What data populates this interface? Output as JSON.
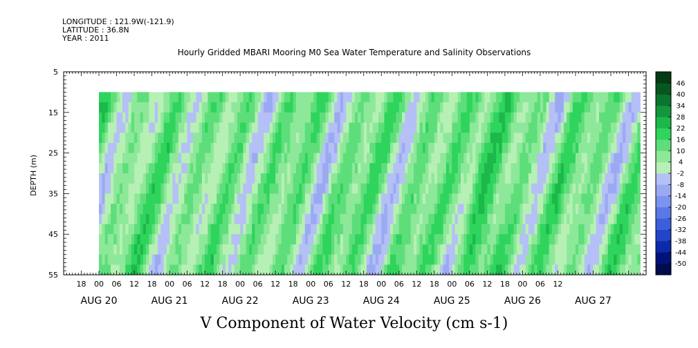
{
  "header": {
    "longitude": "LONGITUDE : 121.9W(-121.9)",
    "latitude": "LATITUDE : 36.8N",
    "year": "YEAR : 2011"
  },
  "chart_data": {
    "type": "heatmap",
    "title": "Hourly Gridded MBARI Mooring M0 Sea Water Temperature and Salinity Observations",
    "xlabel": "V Component of Water Velocity (cm s-1)",
    "ylabel": "DEPTH (m)",
    "ylim": [
      5,
      55
    ],
    "y_inverted": true,
    "y_ticks": [
      5,
      15,
      25,
      35,
      45,
      55
    ],
    "x_range_hours": [
      "2011-08-19T12:00",
      "2011-08-27T18:00"
    ],
    "data_x_range": [
      "2011-08-20T00:00",
      "2011-08-27T16:00"
    ],
    "data_depth_range": [
      10,
      55
    ],
    "x_hour_ticks": [
      "18",
      "00",
      "06",
      "12",
      "18",
      "00",
      "06",
      "12",
      "18",
      "00",
      "06",
      "12",
      "18",
      "00",
      "06",
      "12",
      "18",
      "00",
      "06",
      "12",
      "18",
      "00",
      "06",
      "12",
      "18",
      "00",
      "06",
      "12"
    ],
    "x_day_labels": [
      "AUG 20",
      "AUG 21",
      "AUG 22",
      "AUG 23",
      "AUG 24",
      "AUG 25",
      "AUG 26",
      "AUG 27"
    ],
    "colorbar": {
      "levels": [
        -50,
        -44,
        -38,
        -32,
        -26,
        -20,
        -14,
        -8,
        -2,
        4,
        10,
        16,
        22,
        28,
        34,
        40,
        46
      ],
      "colors": [
        "#000c50",
        "#00137a",
        "#0a2aa8",
        "#2244c8",
        "#3d5edc",
        "#5a78e6",
        "#7b94ee",
        "#9aaaf2",
        "#b4c0f6",
        "#b6f0b4",
        "#8ee89a",
        "#5ede7a",
        "#2fd45c",
        "#1cb84a",
        "#14963c",
        "#0c7430",
        "#07561f",
        "#043a14"
      ]
    }
  }
}
